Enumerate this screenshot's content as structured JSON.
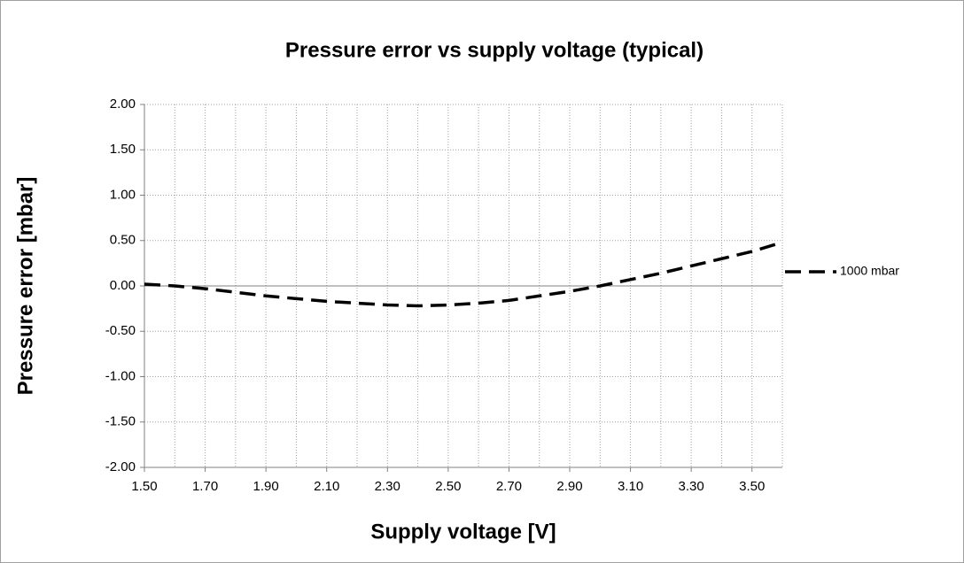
{
  "chart_data": {
    "type": "line",
    "title": "Pressure error vs supply voltage (typical)",
    "xlabel": "Supply voltage [V]",
    "ylabel": "Pressure error [mbar]",
    "x": [
      1.5,
      1.6,
      1.7,
      1.8,
      1.9,
      2.0,
      2.1,
      2.2,
      2.3,
      2.4,
      2.5,
      2.6,
      2.7,
      2.8,
      2.9,
      3.0,
      3.1,
      3.2,
      3.3,
      3.4,
      3.5,
      3.6
    ],
    "series": [
      {
        "name": "1000 mbar",
        "color": "#000000",
        "values": [
          0.02,
          0.0,
          -0.03,
          -0.07,
          -0.11,
          -0.14,
          -0.17,
          -0.19,
          -0.21,
          -0.22,
          -0.21,
          -0.19,
          -0.16,
          -0.11,
          -0.06,
          0.0,
          0.07,
          0.14,
          0.22,
          0.3,
          0.38,
          0.48
        ]
      }
    ],
    "xlim": [
      1.5,
      3.6
    ],
    "xticks": [
      {
        "value": 1.5,
        "label": "1.50"
      },
      {
        "value": 1.7,
        "label": "1.70"
      },
      {
        "value": 1.9,
        "label": "1.90"
      },
      {
        "value": 2.1,
        "label": "2.10"
      },
      {
        "value": 2.3,
        "label": "2.30"
      },
      {
        "value": 2.5,
        "label": "2.50"
      },
      {
        "value": 2.7,
        "label": "2.70"
      },
      {
        "value": 2.9,
        "label": "2.90"
      },
      {
        "value": 3.1,
        "label": "3.10"
      },
      {
        "value": 3.3,
        "label": "3.30"
      },
      {
        "value": 3.5,
        "label": "3.50"
      }
    ],
    "xgrid": [
      1.6,
      1.7,
      1.8,
      1.9,
      2.0,
      2.1,
      2.2,
      2.3,
      2.4,
      2.5,
      2.6,
      2.7,
      2.8,
      2.9,
      3.0,
      3.1,
      3.2,
      3.3,
      3.4,
      3.5,
      3.6
    ],
    "ylim": [
      -2,
      2
    ],
    "yticks": [
      {
        "value": 2,
        "label": "2.00"
      },
      {
        "value": 1.5,
        "label": "1.50"
      },
      {
        "value": 1,
        "label": "1.00"
      },
      {
        "value": 0.5,
        "label": "0.50"
      },
      {
        "value": 0,
        "label": "0.00"
      },
      {
        "value": -0.5,
        "label": "-0.50"
      },
      {
        "value": -1,
        "label": "-1.00"
      },
      {
        "value": -1.5,
        "label": "-1.50"
      },
      {
        "value": -2,
        "label": "-2.00"
      }
    ],
    "grid": true,
    "legend": "right"
  }
}
